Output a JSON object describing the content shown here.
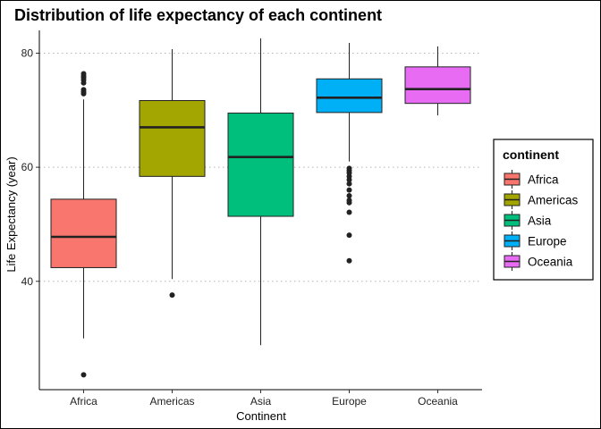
{
  "chart_data": {
    "type": "boxplot",
    "title": "Distribution of life expectancy of each continent",
    "xlabel": "Continent",
    "ylabel": "Life Expectancy (year)",
    "ylim": [
      21,
      84
    ],
    "yticks": [
      40,
      60,
      80
    ],
    "grid": "horizontal dotted",
    "legend": {
      "title": "continent",
      "placement": "right"
    },
    "categories": [
      "Africa",
      "Americas",
      "Asia",
      "Europe",
      "Oceania"
    ],
    "series": [
      {
        "name": "Africa",
        "color": "#F8766D",
        "whisker_low": 30.0,
        "q1": 42.4,
        "median": 47.8,
        "q3": 54.4,
        "whisker_high": 71.9,
        "outliers": [
          76.4,
          76.0,
          75.7,
          75.3,
          74.8,
          73.6,
          73.2,
          72.9,
          23.6
        ]
      },
      {
        "name": "Americas",
        "color": "#A3A500",
        "whisker_low": 40.4,
        "q1": 58.4,
        "median": 67.0,
        "q3": 71.7,
        "whisker_high": 80.7,
        "outliers": [
          37.6
        ]
      },
      {
        "name": "Asia",
        "color": "#00BF7D",
        "whisker_low": 28.8,
        "q1": 51.4,
        "median": 61.8,
        "q3": 69.5,
        "whisker_high": 82.6,
        "outliers": []
      },
      {
        "name": "Europe",
        "color": "#00B0F6",
        "whisker_low": 61.0,
        "q1": 69.6,
        "median": 72.2,
        "q3": 75.5,
        "whisker_high": 81.8,
        "outliers": [
          59.8,
          59.4,
          59.0,
          58.4,
          57.8,
          57.1,
          56.0,
          55.0,
          54.2,
          53.8,
          52.1,
          48.1,
          43.6
        ]
      },
      {
        "name": "Oceania",
        "color": "#E76BF3",
        "whisker_low": 69.1,
        "q1": 71.2,
        "median": 73.7,
        "q3": 77.6,
        "whisker_high": 81.2,
        "outliers": []
      }
    ]
  }
}
